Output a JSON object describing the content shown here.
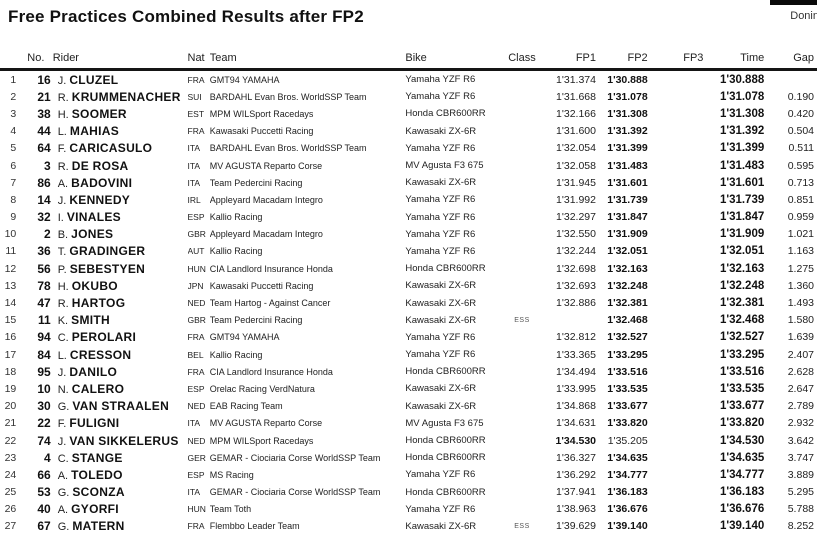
{
  "page": {
    "title": "Free Practices Combined Results after FP2",
    "venue_partial": "Donin"
  },
  "table": {
    "columns": {
      "no": "No.",
      "rider": "Rider",
      "nat": "Nat",
      "team": "Team",
      "bike": "Bike",
      "class": "Class",
      "fp1": "FP1",
      "fp2": "FP2",
      "fp3": "FP3",
      "time": "Time",
      "gap": "Gap"
    },
    "rows": [
      {
        "pos": 1,
        "no": 16,
        "initial": "J.",
        "surname": "CLUZEL",
        "nat": "FRA",
        "team": "GMT94 YAMAHA",
        "bike": "Yamaha YZF R6",
        "class": "",
        "fp1": "1'31.374",
        "fp2": "1'30.888",
        "fp3": "",
        "time": "1'30.888",
        "gap": "",
        "best": "fp2"
      },
      {
        "pos": 2,
        "no": 21,
        "initial": "R.",
        "surname": "KRUMMENACHER",
        "nat": "SUI",
        "team": "BARDAHL Evan Bros. WorldSSP Team",
        "bike": "Yamaha YZF R6",
        "class": "",
        "fp1": "1'31.668",
        "fp2": "1'31.078",
        "fp3": "",
        "time": "1'31.078",
        "gap": "0.190",
        "best": "fp2"
      },
      {
        "pos": 3,
        "no": 38,
        "initial": "H.",
        "surname": "SOOMER",
        "nat": "EST",
        "team": "MPM WILSport Racedays",
        "bike": "Honda CBR600RR",
        "class": "",
        "fp1": "1'32.166",
        "fp2": "1'31.308",
        "fp3": "",
        "time": "1'31.308",
        "gap": "0.420",
        "best": "fp2"
      },
      {
        "pos": 4,
        "no": 44,
        "initial": "L.",
        "surname": "MAHIAS",
        "nat": "FRA",
        "team": "Kawasaki Puccetti Racing",
        "bike": "Kawasaki ZX-6R",
        "class": "",
        "fp1": "1'31.600",
        "fp2": "1'31.392",
        "fp3": "",
        "time": "1'31.392",
        "gap": "0.504",
        "best": "fp2"
      },
      {
        "pos": 5,
        "no": 64,
        "initial": "F.",
        "surname": "CARICASULO",
        "nat": "ITA",
        "team": "BARDAHL Evan Bros. WorldSSP Team",
        "bike": "Yamaha YZF R6",
        "class": "",
        "fp1": "1'32.054",
        "fp2": "1'31.399",
        "fp3": "",
        "time": "1'31.399",
        "gap": "0.511",
        "best": "fp2"
      },
      {
        "pos": 6,
        "no": 3,
        "initial": "R.",
        "surname": "DE ROSA",
        "nat": "ITA",
        "team": "MV AGUSTA Reparto Corse",
        "bike": "MV Agusta F3 675",
        "class": "",
        "fp1": "1'32.058",
        "fp2": "1'31.483",
        "fp3": "",
        "time": "1'31.483",
        "gap": "0.595",
        "best": "fp2"
      },
      {
        "pos": 7,
        "no": 86,
        "initial": "A.",
        "surname": "BADOVINI",
        "nat": "ITA",
        "team": "Team Pedercini Racing",
        "bike": "Kawasaki ZX-6R",
        "class": "",
        "fp1": "1'31.945",
        "fp2": "1'31.601",
        "fp3": "",
        "time": "1'31.601",
        "gap": "0.713",
        "best": "fp2"
      },
      {
        "pos": 8,
        "no": 14,
        "initial": "J.",
        "surname": "KENNEDY",
        "nat": "IRL",
        "team": "Appleyard Macadam Integro",
        "bike": "Yamaha YZF R6",
        "class": "",
        "fp1": "1'31.992",
        "fp2": "1'31.739",
        "fp3": "",
        "time": "1'31.739",
        "gap": "0.851",
        "best": "fp2"
      },
      {
        "pos": 9,
        "no": 32,
        "initial": "I.",
        "surname": "VINALES",
        "nat": "ESP",
        "team": "Kallio Racing",
        "bike": "Yamaha YZF R6",
        "class": "",
        "fp1": "1'32.297",
        "fp2": "1'31.847",
        "fp3": "",
        "time": "1'31.847",
        "gap": "0.959",
        "best": "fp2"
      },
      {
        "pos": 10,
        "no": 2,
        "initial": "B.",
        "surname": "JONES",
        "nat": "GBR",
        "team": "Appleyard Macadam Integro",
        "bike": "Yamaha YZF R6",
        "class": "",
        "fp1": "1'32.550",
        "fp2": "1'31.909",
        "fp3": "",
        "time": "1'31.909",
        "gap": "1.021",
        "best": "fp2"
      },
      {
        "pos": 11,
        "no": 36,
        "initial": "T.",
        "surname": "GRADINGER",
        "nat": "AUT",
        "team": "Kallio Racing",
        "bike": "Yamaha YZF R6",
        "class": "",
        "fp1": "1'32.244",
        "fp2": "1'32.051",
        "fp3": "",
        "time": "1'32.051",
        "gap": "1.163",
        "best": "fp2"
      },
      {
        "pos": 12,
        "no": 56,
        "initial": "P.",
        "surname": "SEBESTYEN",
        "nat": "HUN",
        "team": "CIA Landlord Insurance Honda",
        "bike": "Honda CBR600RR",
        "class": "",
        "fp1": "1'32.698",
        "fp2": "1'32.163",
        "fp3": "",
        "time": "1'32.163",
        "gap": "1.275",
        "best": "fp2"
      },
      {
        "pos": 13,
        "no": 78,
        "initial": "H.",
        "surname": "OKUBO",
        "nat": "JPN",
        "team": "Kawasaki Puccetti Racing",
        "bike": "Kawasaki ZX-6R",
        "class": "",
        "fp1": "1'32.693",
        "fp2": "1'32.248",
        "fp3": "",
        "time": "1'32.248",
        "gap": "1.360",
        "best": "fp2"
      },
      {
        "pos": 14,
        "no": 47,
        "initial": "R.",
        "surname": "HARTOG",
        "nat": "NED",
        "team": "Team Hartog - Against Cancer",
        "bike": "Kawasaki ZX-6R",
        "class": "",
        "fp1": "1'32.886",
        "fp2": "1'32.381",
        "fp3": "",
        "time": "1'32.381",
        "gap": "1.493",
        "best": "fp2"
      },
      {
        "pos": 15,
        "no": 11,
        "initial": "K.",
        "surname": "SMITH",
        "nat": "GBR",
        "team": "Team Pedercini Racing",
        "bike": "Kawasaki ZX-6R",
        "class": "ESS",
        "fp1": "",
        "fp2": "1'32.468",
        "fp3": "",
        "time": "1'32.468",
        "gap": "1.580",
        "best": "fp2"
      },
      {
        "pos": 16,
        "no": 94,
        "initial": "C.",
        "surname": "PEROLARI",
        "nat": "FRA",
        "team": "GMT94 YAMAHA",
        "bike": "Yamaha YZF R6",
        "class": "",
        "fp1": "1'32.812",
        "fp2": "1'32.527",
        "fp3": "",
        "time": "1'32.527",
        "gap": "1.639",
        "best": "fp2"
      },
      {
        "pos": 17,
        "no": 84,
        "initial": "L.",
        "surname": "CRESSON",
        "nat": "BEL",
        "team": "Kallio Racing",
        "bike": "Yamaha YZF R6",
        "class": "",
        "fp1": "1'33.365",
        "fp2": "1'33.295",
        "fp3": "",
        "time": "1'33.295",
        "gap": "2.407",
        "best": "fp2"
      },
      {
        "pos": 18,
        "no": 95,
        "initial": "J.",
        "surname": "DANILO",
        "nat": "FRA",
        "team": "CIA Landlord Insurance Honda",
        "bike": "Honda CBR600RR",
        "class": "",
        "fp1": "1'34.494",
        "fp2": "1'33.516",
        "fp3": "",
        "time": "1'33.516",
        "gap": "2.628",
        "best": "fp2"
      },
      {
        "pos": 19,
        "no": 10,
        "initial": "N.",
        "surname": "CALERO",
        "nat": "ESP",
        "team": "Orelac Racing VerdNatura",
        "bike": "Kawasaki ZX-6R",
        "class": "",
        "fp1": "1'33.995",
        "fp2": "1'33.535",
        "fp3": "",
        "time": "1'33.535",
        "gap": "2.647",
        "best": "fp2"
      },
      {
        "pos": 20,
        "no": 30,
        "initial": "G.",
        "surname": "VAN STRAALEN",
        "nat": "NED",
        "team": "EAB Racing Team",
        "bike": "Kawasaki ZX-6R",
        "class": "",
        "fp1": "1'34.868",
        "fp2": "1'33.677",
        "fp3": "",
        "time": "1'33.677",
        "gap": "2.789",
        "best": "fp2"
      },
      {
        "pos": 21,
        "no": 22,
        "initial": "F.",
        "surname": "FULIGNI",
        "nat": "ITA",
        "team": "MV AGUSTA Reparto Corse",
        "bike": "MV Agusta F3 675",
        "class": "",
        "fp1": "1'34.631",
        "fp2": "1'33.820",
        "fp3": "",
        "time": "1'33.820",
        "gap": "2.932",
        "best": "fp2"
      },
      {
        "pos": 22,
        "no": 74,
        "initial": "J.",
        "surname": "VAN SIKKELERUS",
        "nat": "NED",
        "team": "MPM WILSport Racedays",
        "bike": "Honda CBR600RR",
        "class": "",
        "fp1": "1'34.530",
        "fp2": "1'35.205",
        "fp3": "",
        "time": "1'34.530",
        "gap": "3.642",
        "best": "fp1"
      },
      {
        "pos": 23,
        "no": 4,
        "initial": "C.",
        "surname": "STANGE",
        "nat": "GER",
        "team": "GEMAR - Ciociaria Corse WorldSSP Team",
        "bike": "Honda CBR600RR",
        "class": "",
        "fp1": "1'36.327",
        "fp2": "1'34.635",
        "fp3": "",
        "time": "1'34.635",
        "gap": "3.747",
        "best": "fp2"
      },
      {
        "pos": 24,
        "no": 66,
        "initial": "A.",
        "surname": "TOLEDO",
        "nat": "ESP",
        "team": "MS Racing",
        "bike": "Yamaha YZF R6",
        "class": "",
        "fp1": "1'36.292",
        "fp2": "1'34.777",
        "fp3": "",
        "time": "1'34.777",
        "gap": "3.889",
        "best": "fp2"
      },
      {
        "pos": 25,
        "no": 53,
        "initial": "G.",
        "surname": "SCONZA",
        "nat": "ITA",
        "team": "GEMAR - Ciociaria Corse WorldSSP Team",
        "bike": "Honda CBR600RR",
        "class": "",
        "fp1": "1'37.941",
        "fp2": "1'36.183",
        "fp3": "",
        "time": "1'36.183",
        "gap": "5.295",
        "best": "fp2"
      },
      {
        "pos": 26,
        "no": 40,
        "initial": "A.",
        "surname": "GYORFI",
        "nat": "HUN",
        "team": "Team Toth",
        "bike": "Yamaha YZF R6",
        "class": "",
        "fp1": "1'38.963",
        "fp2": "1'36.676",
        "fp3": "",
        "time": "1'36.676",
        "gap": "5.788",
        "best": "fp2"
      },
      {
        "pos": 27,
        "no": 67,
        "initial": "G.",
        "surname": "MATERN",
        "nat": "FRA",
        "team": "Flembbo Leader Team",
        "bike": "Kawasaki ZX-6R",
        "class": "ESS",
        "fp1": "1'39.629",
        "fp2": "1'39.140",
        "fp3": "",
        "time": "1'39.140",
        "gap": "8.252",
        "best": "fp2"
      }
    ]
  }
}
